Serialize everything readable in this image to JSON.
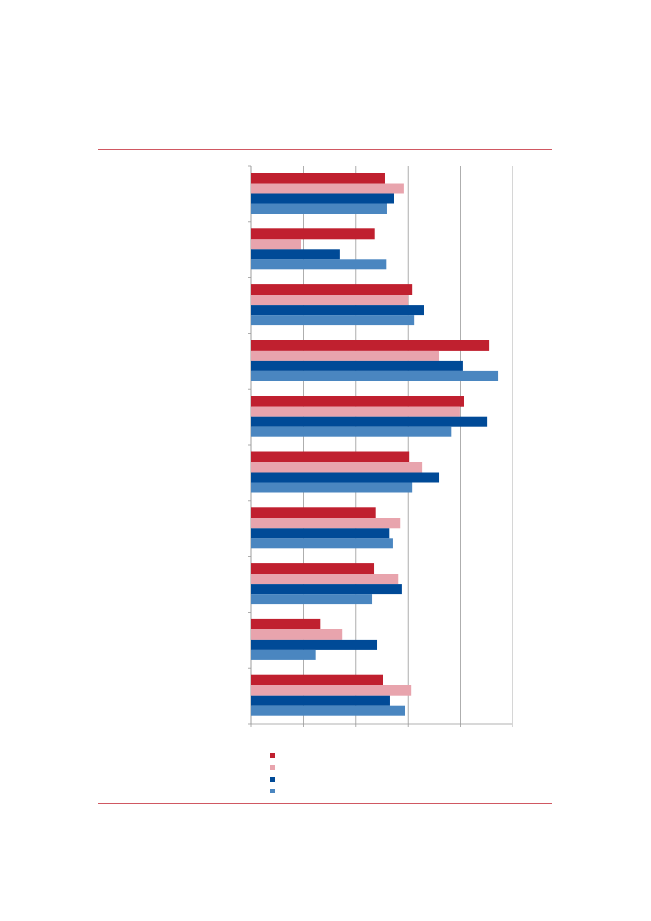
{
  "chart_data": {
    "type": "bar",
    "orientation": "horizontal",
    "categories": [
      null,
      null,
      null,
      null,
      null,
      null,
      null,
      null,
      null,
      null
    ],
    "series": [
      {
        "color": "#c0202f",
        "values": [
          2.56,
          2.36,
          3.09,
          4.55,
          4.08,
          3.03,
          2.39,
          2.35,
          1.33,
          2.52
        ]
      },
      {
        "color": "#e8a4ad",
        "values": [
          2.92,
          0.96,
          3.0,
          3.6,
          3.99,
          3.27,
          2.85,
          2.82,
          1.75,
          3.06
        ]
      },
      {
        "color": "#004a97",
        "values": [
          2.74,
          1.7,
          3.31,
          4.05,
          4.52,
          3.6,
          2.64,
          2.89,
          2.41,
          2.65
        ]
      },
      {
        "color": "#4a86c0",
        "values": [
          2.59,
          2.58,
          3.12,
          4.73,
          3.83,
          3.09,
          2.71,
          2.32,
          1.23,
          2.94
        ]
      }
    ],
    "xlim": [
      0,
      5
    ],
    "xticks": [
      0,
      1,
      2,
      3,
      4,
      5
    ],
    "grid": true
  }
}
